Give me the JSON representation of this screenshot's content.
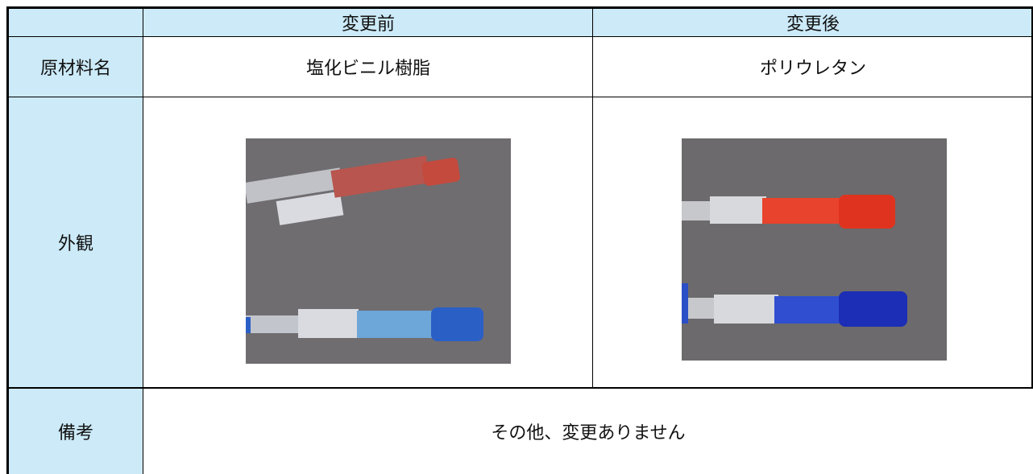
{
  "header": {
    "columns": [
      "変更前",
      "変更後"
    ]
  },
  "rows": [
    {
      "label": "原材料名",
      "cells": [
        "塩化ビニル樹脂",
        "ポリウレタン"
      ]
    },
    {
      "label": "外観"
    },
    {
      "label": "備考",
      "cells": [
        "その他、変更ありません"
      ]
    }
  ]
}
